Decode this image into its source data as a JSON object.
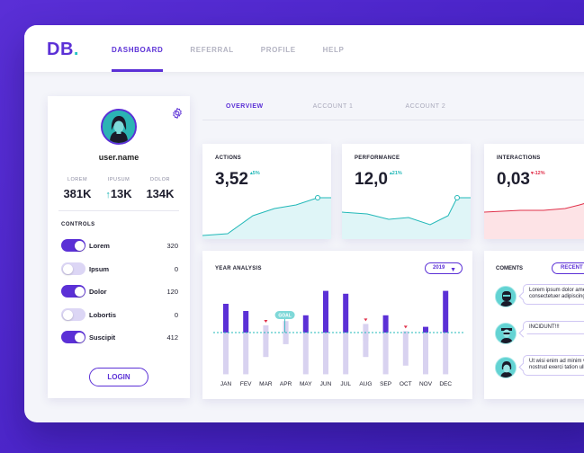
{
  "app": {
    "logo_letters": "DB",
    "logo_dot": ".",
    "nav": [
      {
        "label": "DASHBOARD",
        "active": true
      },
      {
        "label": "REFERRAL",
        "active": false
      },
      {
        "label": "PROFILE",
        "active": false
      },
      {
        "label": "HELP",
        "active": false
      }
    ]
  },
  "profile": {
    "username": "user.name",
    "stats": [
      {
        "label": "LOREM",
        "value": "381K"
      },
      {
        "label": "IPUSUM",
        "value": "13K",
        "arrow": "↑"
      },
      {
        "label": "DOLOR",
        "value": "134K"
      }
    ],
    "controls_title": "CONTROLS",
    "controls": [
      {
        "label": "Lorem",
        "value": "320",
        "on": true
      },
      {
        "label": "Ipsum",
        "value": "0",
        "on": false
      },
      {
        "label": "Dolor",
        "value": "120",
        "on": true
      },
      {
        "label": "Lobortis",
        "value": "0",
        "on": false
      },
      {
        "label": "Suscipit",
        "value": "412",
        "on": true
      }
    ],
    "login_label": "LOGIN"
  },
  "subtabs": [
    {
      "label": "OVERVIEW",
      "active": true
    },
    {
      "label": "ACCOUNT 1",
      "active": false
    },
    {
      "label": "ACCOUNT 2",
      "active": false
    }
  ],
  "kpis": [
    {
      "title": "ACTIONS",
      "value": "3,52",
      "delta": "▴5%",
      "trend": "up",
      "color": "#22b8b8",
      "fill": "#dff5f7"
    },
    {
      "title": "PERFORMANCE",
      "value": "12,0",
      "delta": "▴21%",
      "trend": "up",
      "color": "#22b8b8",
      "fill": "#dff5f7"
    },
    {
      "title": "INTERACTIONS",
      "value": "0,03",
      "delta": "▾-12%",
      "trend": "down",
      "color": "#e0304a",
      "fill": "#fde3e6"
    }
  ],
  "year_analysis": {
    "title": "YEAR ANALYSIS",
    "year_selected": "2019",
    "goal_label": "GOAL"
  },
  "chart_data": {
    "type": "bar",
    "title": "YEAR ANALYSIS",
    "categories": [
      "JAN",
      "FEV",
      "MAR",
      "APR",
      "MAY",
      "JUN",
      "JUL",
      "AUG",
      "SEP",
      "OCT",
      "NOV",
      "DEC"
    ],
    "series": [
      {
        "values": [
          1.0,
          0.75,
          -0.25,
          -0.4,
          0.6,
          1.45,
          1.35,
          -0.3,
          0.6,
          -0.05,
          0.2,
          1.45
        ]
      },
      {
        "values": [
          -1.45,
          -1.45,
          -0.85,
          -0.4,
          -1.45,
          -1.45,
          -1.45,
          -0.85,
          -1.45,
          -1.15,
          -1.45,
          -1.45
        ]
      }
    ],
    "goal": 0,
    "colors": {
      "above": "#5b30d6",
      "below": "#d8d2f0",
      "goal_line": "#22b8b8",
      "marker": "#e0304a"
    }
  },
  "comments": {
    "title": "COMENTS",
    "filter_label": "RECENT",
    "items": [
      {
        "text": "Lorem ipsum dolor amet, consectetuer adipiscing elit."
      },
      {
        "text": "INCIDUNT!!!"
      },
      {
        "text": "Ut wisi enim ad minim veniamquis nostrud exerci tation ullamcorper"
      }
    ]
  }
}
